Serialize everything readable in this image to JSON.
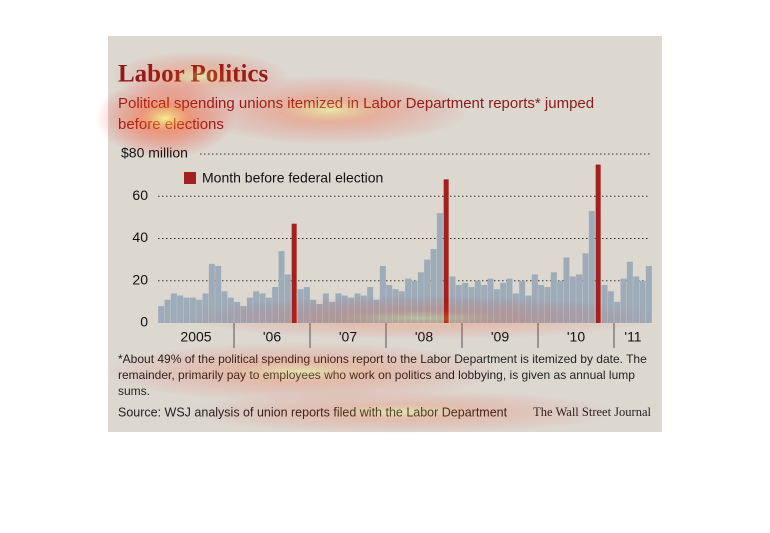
{
  "chart_data": {
    "type": "bar",
    "title": "Labor Politics",
    "subtitle": "Political spending unions itemized in Labor Department reports* jumped before elections",
    "year_labels": [
      "2005",
      "'06",
      "'07",
      "'08",
      "'09",
      "'10",
      "'11"
    ],
    "series": [
      {
        "color": "#9eabb8",
        "values": [
          8,
          11,
          14,
          13,
          12,
          12,
          11,
          14,
          28,
          27,
          15,
          12,
          10,
          8,
          12,
          15,
          14,
          12,
          17,
          34,
          23,
          null,
          16,
          17,
          11,
          9,
          14,
          10,
          14,
          13,
          12,
          14,
          13,
          17,
          11,
          27,
          18,
          16,
          15,
          21,
          20,
          24,
          30,
          35,
          52,
          null,
          22,
          18,
          19,
          17,
          20,
          18,
          21,
          16,
          19,
          21,
          14,
          20,
          13,
          23,
          18,
          17,
          24,
          20,
          31,
          22,
          23,
          33,
          53,
          null,
          18,
          15,
          10,
          21,
          29,
          22,
          20,
          27
        ]
      },
      {
        "name": "Month before federal election",
        "color": "#a3201e",
        "values": [
          null,
          null,
          null,
          null,
          null,
          null,
          null,
          null,
          null,
          null,
          null,
          null,
          null,
          null,
          null,
          null,
          null,
          null,
          null,
          null,
          null,
          47,
          null,
          null,
          null,
          null,
          null,
          null,
          null,
          null,
          null,
          null,
          null,
          null,
          null,
          null,
          null,
          null,
          null,
          null,
          null,
          null,
          null,
          null,
          null,
          68,
          null,
          null,
          null,
          null,
          null,
          null,
          null,
          null,
          null,
          null,
          null,
          null,
          null,
          null,
          null,
          null,
          null,
          null,
          null,
          null,
          null,
          null,
          null,
          75,
          null,
          null,
          null,
          null,
          null,
          null,
          null,
          null
        ]
      }
    ],
    "ylim": [
      0,
      80
    ],
    "yticks": [
      0,
      20,
      40,
      60,
      {
        "value": 80,
        "label": "$80 million"
      }
    ],
    "grid": true,
    "footnote": "*About 49% of the political spending unions report to the Labor Department is itemized by date. The remainder, primarily pay to employees who work on politics and lobbying, is given as annual lump sums.",
    "source": "Source: WSJ analysis of union reports filed with the Labor Department",
    "credit": "The Wall Street Journal"
  }
}
